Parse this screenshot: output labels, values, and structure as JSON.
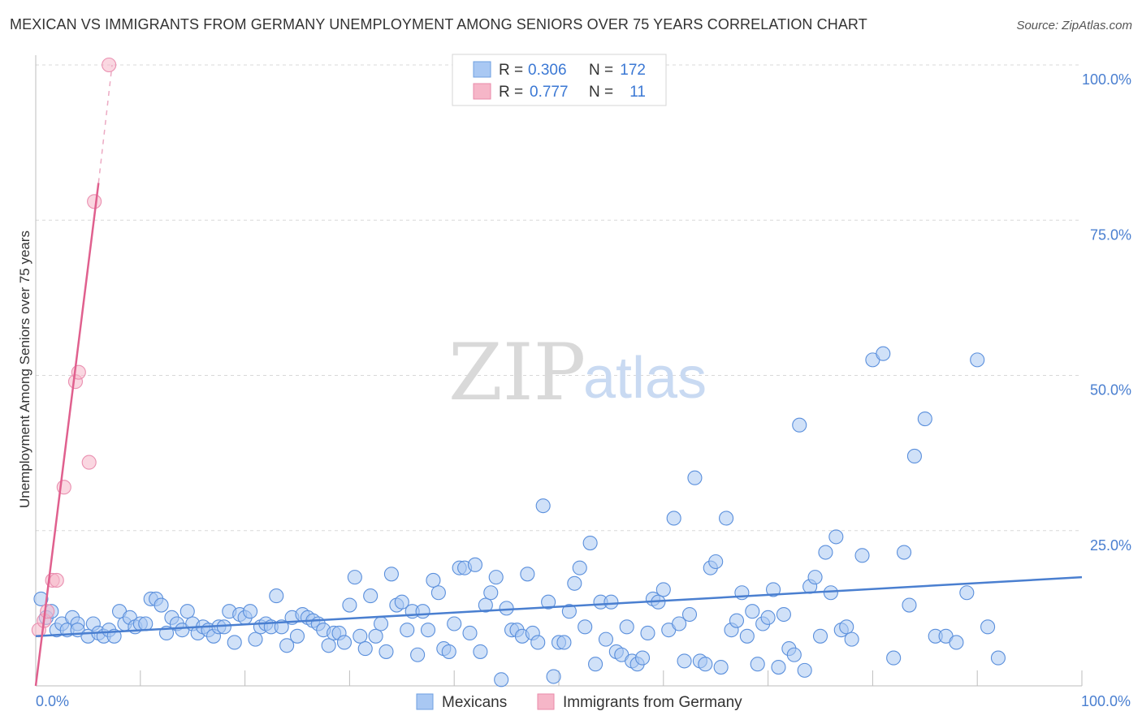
{
  "title": "MEXICAN VS IMMIGRANTS FROM GERMANY UNEMPLOYMENT AMONG SENIORS OVER 75 YEARS CORRELATION CHART",
  "source": "Source: ZipAtlas.com",
  "watermark": {
    "zip": "ZIP",
    "atlas": "atlas"
  },
  "legend": {
    "rows": [
      {
        "r_label": "R =",
        "r_value": "0.306",
        "n_label": "N =",
        "n_value": "172",
        "color": "#a9c8f3"
      },
      {
        "r_label": "R =",
        "r_value": "0.777",
        "n_label": "N =",
        "n_value": "11",
        "color": "#f6b6c8"
      }
    ]
  },
  "bottom_legend": [
    {
      "label": "Mexicans",
      "color": "#a9c8f3"
    },
    {
      "label": "Immigrants from Germany",
      "color": "#f6b6c8"
    }
  ],
  "colors": {
    "blue": "#4a7fd0",
    "blue_fill": "#a9c8f3",
    "pink": "#e0608e",
    "pink_fill": "#f6b6c8",
    "grid": "#d8d8d8"
  },
  "chart_data": {
    "type": "scatter",
    "title": "MEXICAN VS IMMIGRANTS FROM GERMANY UNEMPLOYMENT AMONG SENIORS OVER 75 YEARS CORRELATION CHART",
    "xlabel": "",
    "ylabel": "Unemployment Among Seniors over 75 years",
    "xlim": [
      0,
      100
    ],
    "ylim": [
      0,
      100
    ],
    "x_tick_labels": [
      "0.0%",
      "100.0%"
    ],
    "y_tick_labels": [
      "25.0%",
      "50.0%",
      "75.0%",
      "100.0%"
    ],
    "y_ticks": [
      25,
      50,
      75,
      100
    ],
    "grid": true,
    "legend_position": "top-center",
    "series": [
      {
        "name": "Mexicans",
        "color": "#a9c8f3",
        "trend": {
          "x": [
            0,
            100
          ],
          "y": [
            8.0,
            17.5
          ]
        },
        "points": [
          [
            0.5,
            14
          ],
          [
            1,
            11
          ],
          [
            1.5,
            12
          ],
          [
            2,
            9
          ],
          [
            2.5,
            10
          ],
          [
            3,
            9
          ],
          [
            3.5,
            11
          ],
          [
            4,
            10
          ],
          [
            4,
            9
          ],
          [
            5,
            8
          ],
          [
            5.5,
            10
          ],
          [
            6,
            8.5
          ],
          [
            6.5,
            8
          ],
          [
            7,
            9
          ],
          [
            7.5,
            8
          ],
          [
            8,
            12
          ],
          [
            8.5,
            10
          ],
          [
            9,
            11
          ],
          [
            9.5,
            9.5
          ],
          [
            10,
            10
          ],
          [
            10.5,
            10
          ],
          [
            11,
            14
          ],
          [
            11.5,
            14
          ],
          [
            12,
            13
          ],
          [
            12.5,
            8.5
          ],
          [
            13,
            11
          ],
          [
            13.5,
            10
          ],
          [
            14,
            9
          ],
          [
            14.5,
            12
          ],
          [
            15,
            10
          ],
          [
            15.5,
            8.5
          ],
          [
            16,
            9.5
          ],
          [
            16.5,
            9
          ],
          [
            17,
            8
          ],
          [
            17.5,
            9.5
          ],
          [
            18,
            9.5
          ],
          [
            18.5,
            12
          ],
          [
            19,
            7
          ],
          [
            19.5,
            11.5
          ],
          [
            20,
            11
          ],
          [
            20.5,
            12
          ],
          [
            21,
            7.5
          ],
          [
            21.5,
            9.5
          ],
          [
            22,
            10
          ],
          [
            22.5,
            9.5
          ],
          [
            23,
            14.5
          ],
          [
            23.5,
            9.5
          ],
          [
            24,
            6.5
          ],
          [
            24.5,
            11
          ],
          [
            25,
            8
          ],
          [
            25.5,
            11.5
          ],
          [
            26,
            11
          ],
          [
            26.5,
            10.5
          ],
          [
            27,
            10
          ],
          [
            27.5,
            9
          ],
          [
            28,
            6.5
          ],
          [
            28.5,
            8.5
          ],
          [
            29,
            8.5
          ],
          [
            29.5,
            7
          ],
          [
            30,
            13
          ],
          [
            30.5,
            17.5
          ],
          [
            31,
            8
          ],
          [
            31.5,
            6
          ],
          [
            32,
            14.5
          ],
          [
            32.5,
            8
          ],
          [
            33,
            10
          ],
          [
            33.5,
            5.5
          ],
          [
            34,
            18
          ],
          [
            34.5,
            13
          ],
          [
            35,
            13.5
          ],
          [
            35.5,
            9
          ],
          [
            36,
            12
          ],
          [
            36.5,
            5
          ],
          [
            37,
            12
          ],
          [
            37.5,
            9
          ],
          [
            38,
            17
          ],
          [
            38.5,
            15
          ],
          [
            39,
            6
          ],
          [
            39.5,
            5.5
          ],
          [
            40,
            10
          ],
          [
            40.5,
            19
          ],
          [
            41,
            19
          ],
          [
            41.5,
            8.5
          ],
          [
            42,
            19.5
          ],
          [
            42.5,
            5.5
          ],
          [
            43,
            13
          ],
          [
            43.5,
            15
          ],
          [
            44,
            17.5
          ],
          [
            44.5,
            1
          ],
          [
            45,
            12.5
          ],
          [
            45.5,
            9
          ],
          [
            46,
            9
          ],
          [
            46.5,
            8
          ],
          [
            47,
            18
          ],
          [
            47.5,
            8.5
          ],
          [
            48,
            7
          ],
          [
            48.5,
            29
          ],
          [
            49,
            13.5
          ],
          [
            49.5,
            1.5
          ],
          [
            50,
            7
          ],
          [
            50.5,
            7
          ],
          [
            51,
            12
          ],
          [
            51.5,
            16.5
          ],
          [
            52,
            19
          ],
          [
            52.5,
            9.5
          ],
          [
            53,
            23
          ],
          [
            53.5,
            3.5
          ],
          [
            54,
            13.5
          ],
          [
            54.5,
            7.5
          ],
          [
            55,
            13.5
          ],
          [
            55.5,
            5.5
          ],
          [
            56,
            5
          ],
          [
            56.5,
            9.5
          ],
          [
            57,
            4
          ],
          [
            57.5,
            3.5
          ],
          [
            58,
            4.5
          ],
          [
            58.5,
            8.5
          ],
          [
            59,
            14
          ],
          [
            59.5,
            13.5
          ],
          [
            60,
            15.5
          ],
          [
            60.5,
            9
          ],
          [
            61,
            27
          ],
          [
            61.5,
            10
          ],
          [
            62,
            4
          ],
          [
            62.5,
            11.5
          ],
          [
            63,
            33.5
          ],
          [
            63.5,
            4
          ],
          [
            64,
            3.5
          ],
          [
            64.5,
            19
          ],
          [
            65,
            20
          ],
          [
            65.5,
            3
          ],
          [
            66,
            27
          ],
          [
            66.5,
            9
          ],
          [
            67,
            10.5
          ],
          [
            67.5,
            15
          ],
          [
            68,
            8
          ],
          [
            68.5,
            12
          ],
          [
            69,
            3.5
          ],
          [
            69.5,
            10
          ],
          [
            70,
            11
          ],
          [
            70.5,
            15.5
          ],
          [
            71,
            3
          ],
          [
            71.5,
            11.5
          ],
          [
            72,
            6
          ],
          [
            72.5,
            5
          ],
          [
            73,
            42
          ],
          [
            73.5,
            2.5
          ],
          [
            74,
            16
          ],
          [
            74.5,
            17.5
          ],
          [
            75,
            8
          ],
          [
            75.5,
            21.5
          ],
          [
            76,
            15
          ],
          [
            76.5,
            24
          ],
          [
            77,
            9
          ],
          [
            77.5,
            9.5
          ],
          [
            78,
            7.5
          ],
          [
            79,
            21
          ],
          [
            80,
            52.5
          ],
          [
            81,
            53.5
          ],
          [
            82,
            4.5
          ],
          [
            83,
            21.5
          ],
          [
            83.5,
            13
          ],
          [
            84,
            37
          ],
          [
            85,
            43
          ],
          [
            86,
            8
          ],
          [
            87,
            8
          ],
          [
            88,
            7
          ],
          [
            89,
            15
          ],
          [
            90,
            52.5
          ],
          [
            91,
            9.5
          ],
          [
            92,
            4.5
          ]
        ]
      },
      {
        "name": "Immigrants from Germany",
        "color": "#f6b6c8",
        "trend": {
          "x": [
            0,
            6
          ],
          "y": [
            0,
            81
          ]
        },
        "trend_dashed": {
          "x": [
            6,
            7.3
          ],
          "y": [
            81,
            100
          ]
        },
        "points": [
          [
            0.3,
            9
          ],
          [
            0.8,
            10.5
          ],
          [
            1.1,
            12
          ],
          [
            1.6,
            17
          ],
          [
            2,
            17
          ],
          [
            2.7,
            32
          ],
          [
            3.8,
            49
          ],
          [
            4.1,
            50.5
          ],
          [
            5.1,
            36
          ],
          [
            5.6,
            78
          ],
          [
            7,
            100
          ]
        ]
      }
    ]
  }
}
